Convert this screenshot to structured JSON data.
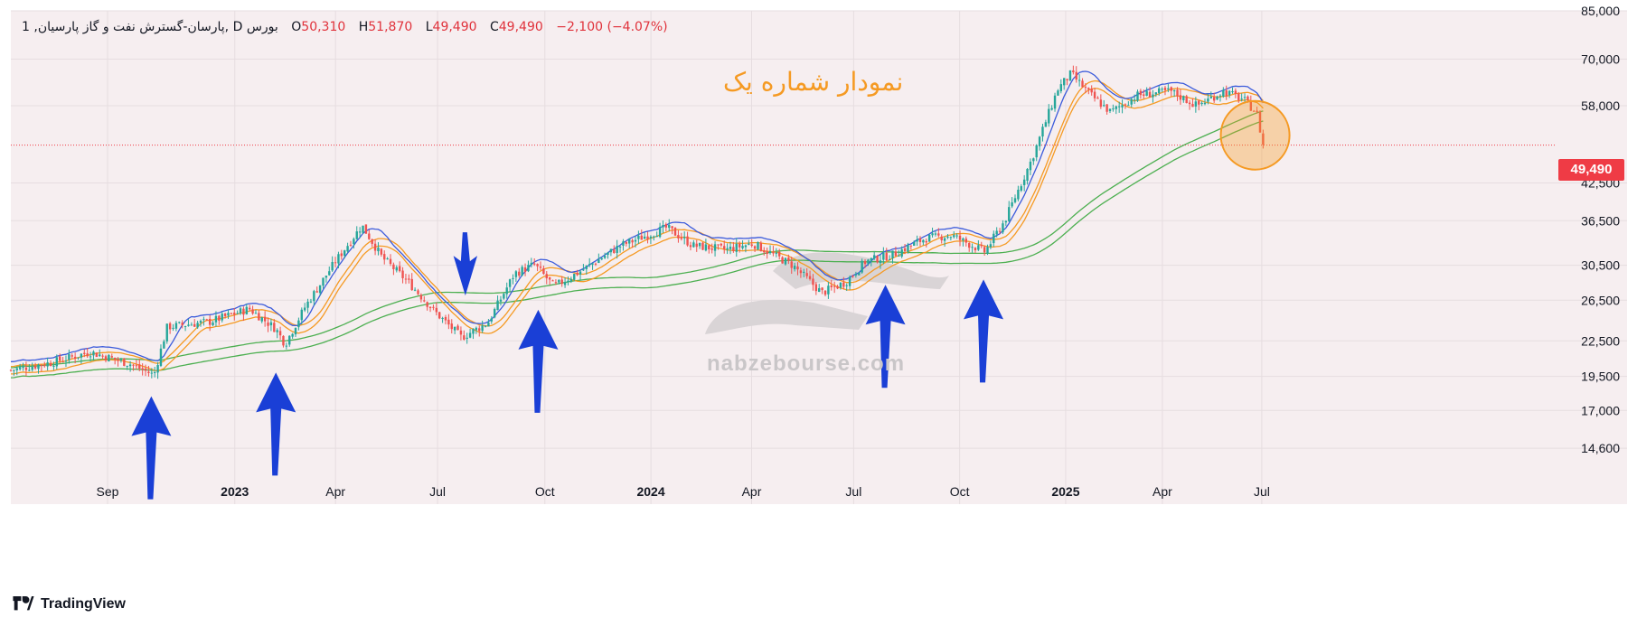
{
  "legend": {
    "interval_prefix": "1 ,",
    "symbol": "پارسان-گسترش نفت و گاز پارسیان",
    "timeframe": "D",
    "exchange": "بورس",
    "open_label": "O",
    "open": "50,310",
    "high_label": "H",
    "high": "51,870",
    "low_label": "L",
    "low": "49,490",
    "close_label": "C",
    "close": "49,490",
    "change": "−2,100 (−4.07%)"
  },
  "watermark": "nabzebourse.com",
  "branding": {
    "name": "TradingView",
    "icon": "tradingview-logo-icon"
  },
  "colors": {
    "background": "#f6eef0",
    "up_candle": "#26a69a",
    "down_candle": "#ef5350",
    "ma_blue": "#3b5bdb",
    "ma_orange": "#f59a23",
    "ma_green": "#4caf50",
    "ma_red": "#ef5350",
    "arrow": "#1a3fd6",
    "price_line": "#ef3b45"
  },
  "chart_data": {
    "type": "candlestick",
    "title": "نمودار شماره یک",
    "y_scale": "log",
    "ylim": [
      13000,
      85000
    ],
    "y_ticks": [
      85000,
      70000,
      58000,
      49490,
      42500,
      36500,
      30500,
      26500,
      22500,
      19500,
      17000,
      14600
    ],
    "y_tick_labels": [
      "85,000",
      "70,000",
      "58,000",
      "49,490",
      "42,500",
      "36,500",
      "30,500",
      "26,500",
      "22,500",
      "19,500",
      "17,000",
      "14,600"
    ],
    "x_ticks": [
      {
        "label": "Sep",
        "t": 0.073,
        "bold": false
      },
      {
        "label": "2023",
        "t": 0.169,
        "bold": true
      },
      {
        "label": "Apr",
        "t": 0.245,
        "bold": false
      },
      {
        "label": "Jul",
        "t": 0.322,
        "bold": false
      },
      {
        "label": "Oct",
        "t": 0.403,
        "bold": false
      },
      {
        "label": "2024",
        "t": 0.483,
        "bold": true
      },
      {
        "label": "Apr",
        "t": 0.559,
        "bold": false
      },
      {
        "label": "Jul",
        "t": 0.636,
        "bold": false
      },
      {
        "label": "Oct",
        "t": 0.716,
        "bold": false
      },
      {
        "label": "2025",
        "t": 0.796,
        "bold": true
      },
      {
        "label": "Apr",
        "t": 0.869,
        "bold": false
      },
      {
        "label": "Jul",
        "t": 0.944,
        "bold": false
      }
    ],
    "last_price": 49490,
    "last_price_label": "49,490",
    "price_path": [
      {
        "t": 0.0,
        "p": 20000
      },
      {
        "t": 0.03,
        "p": 20600
      },
      {
        "t": 0.06,
        "p": 21500
      },
      {
        "t": 0.09,
        "p": 20500
      },
      {
        "t": 0.108,
        "p": 19600
      },
      {
        "t": 0.118,
        "p": 23800
      },
      {
        "t": 0.15,
        "p": 24300
      },
      {
        "t": 0.18,
        "p": 25600
      },
      {
        "t": 0.2,
        "p": 23600
      },
      {
        "t": 0.207,
        "p": 22200
      },
      {
        "t": 0.222,
        "p": 25800
      },
      {
        "t": 0.245,
        "p": 31000
      },
      {
        "t": 0.265,
        "p": 35800
      },
      {
        "t": 0.28,
        "p": 31500
      },
      {
        "t": 0.3,
        "p": 28500
      },
      {
        "t": 0.32,
        "p": 25300
      },
      {
        "t": 0.34,
        "p": 22800
      },
      {
        "t": 0.36,
        "p": 24200
      },
      {
        "t": 0.38,
        "p": 29500
      },
      {
        "t": 0.395,
        "p": 30600
      },
      {
        "t": 0.41,
        "p": 28000
      },
      {
        "t": 0.43,
        "p": 29800
      },
      {
        "t": 0.46,
        "p": 33000
      },
      {
        "t": 0.495,
        "p": 35500
      },
      {
        "t": 0.515,
        "p": 33000
      },
      {
        "t": 0.54,
        "p": 32500
      },
      {
        "t": 0.56,
        "p": 33300
      },
      {
        "t": 0.59,
        "p": 30500
      },
      {
        "t": 0.612,
        "p": 27300
      },
      {
        "t": 0.63,
        "p": 28500
      },
      {
        "t": 0.645,
        "p": 31000
      },
      {
        "t": 0.665,
        "p": 31800
      },
      {
        "t": 0.69,
        "p": 34000
      },
      {
        "t": 0.71,
        "p": 34400
      },
      {
        "t": 0.735,
        "p": 32200
      },
      {
        "t": 0.75,
        "p": 36500
      },
      {
        "t": 0.77,
        "p": 46500
      },
      {
        "t": 0.79,
        "p": 62000
      },
      {
        "t": 0.8,
        "p": 66000
      },
      {
        "t": 0.815,
        "p": 60500
      },
      {
        "t": 0.83,
        "p": 56500
      },
      {
        "t": 0.85,
        "p": 60500
      },
      {
        "t": 0.875,
        "p": 61500
      },
      {
        "t": 0.895,
        "p": 58000
      },
      {
        "t": 0.915,
        "p": 61500
      },
      {
        "t": 0.93,
        "p": 59500
      },
      {
        "t": 0.94,
        "p": 56500
      },
      {
        "t": 0.945,
        "p": 49490
      }
    ],
    "annotations": [
      {
        "type": "arrow",
        "direction": "up",
        "at_t": 0.106,
        "at_p": 18000
      },
      {
        "type": "arrow",
        "direction": "up",
        "at_t": 0.2,
        "at_p": 19800
      },
      {
        "type": "arrow",
        "direction": "down",
        "at_t": 0.343,
        "at_p": 27000
      },
      {
        "type": "arrow",
        "direction": "up",
        "at_t": 0.398,
        "at_p": 25500
      },
      {
        "type": "arrow",
        "direction": "up",
        "at_t": 0.66,
        "at_p": 28200
      },
      {
        "type": "arrow",
        "direction": "up",
        "at_t": 0.734,
        "at_p": 28800
      },
      {
        "type": "circle",
        "at_t": 0.939,
        "at_p": 51500
      }
    ]
  }
}
